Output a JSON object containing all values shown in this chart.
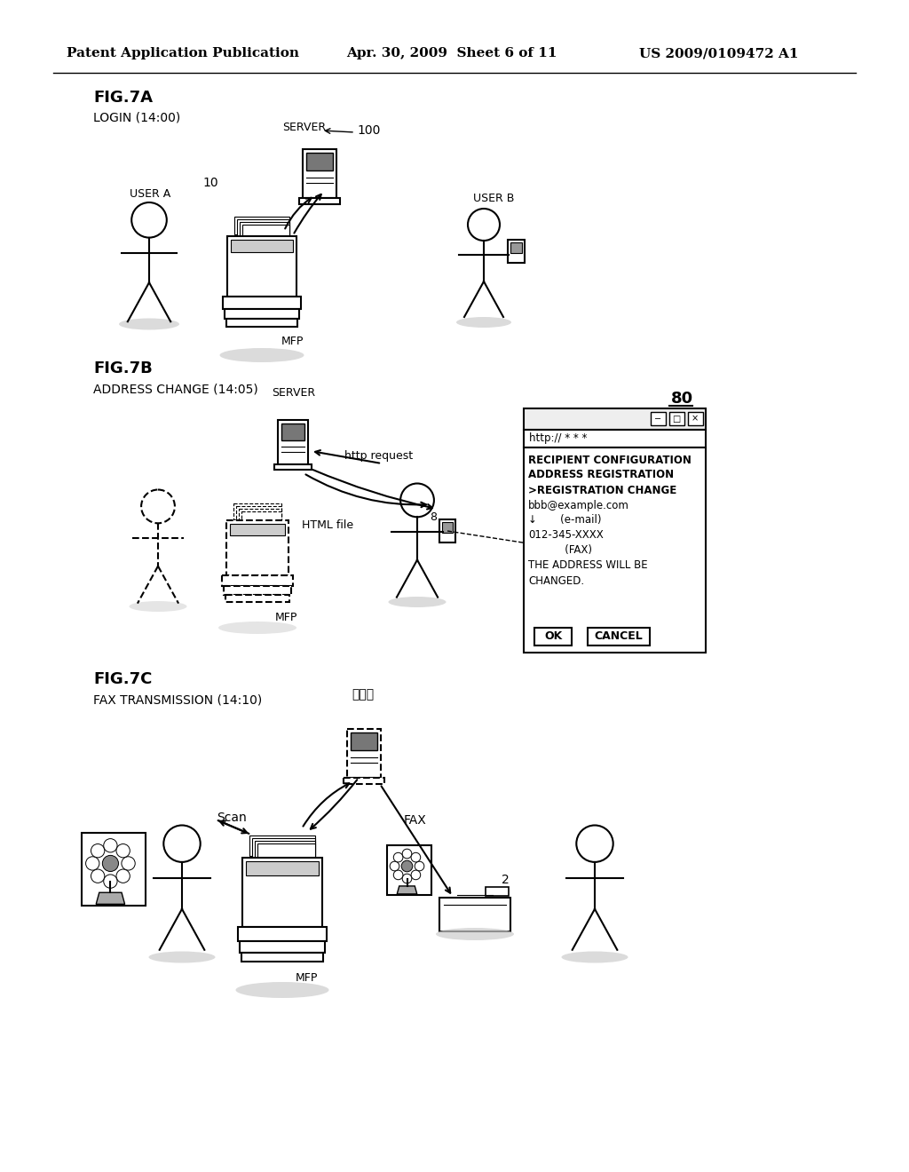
{
  "bg_color": "#ffffff",
  "header_text": "Patent Application Publication",
  "header_date": "Apr. 30, 2009  Sheet 6 of 11",
  "header_patent": "US 2009/0109472 A1",
  "fig7a_label": "FIG.7A",
  "fig7a_sub": "LOGIN (14:00)",
  "fig7b_label": "FIG.7B",
  "fig7b_sub": "ADDRESS CHANGE (14:05)",
  "fig7c_label": "FIG.7C",
  "fig7c_sub": "FAX TRANSMISSION (14:10)",
  "server_label": "SERVER",
  "server_num": "100",
  "mfp_label": "MFP",
  "user_a_label": "USER A",
  "user_b_label": "USER B",
  "num_10": "10",
  "num_8": "8",
  "num_2": "2",
  "num_80": "80",
  "server_label2": "SERVER",
  "html_label": "HTML file",
  "http_label": "http request",
  "mfp_label2": "MFP",
  "scan_label": "Scan",
  "fax_label": "FAX",
  "mfp_label3": "MFP",
  "server_jp": "サーバ",
  "browser_url": "http:// * * *",
  "browser_line1": "RECIPIENT CONFIGURATION",
  "browser_line2": "ADDRESS REGISTRATION",
  "browser_line3": ">REGISTRATION CHANGE",
  "browser_line4": "bbb@example.com",
  "browser_line5": "↓       (e-mail)",
  "browser_line6": "012-345-XXXX",
  "browser_line7": "           (FAX)",
  "browser_line8": "THE ADDRESS WILL BE",
  "browser_line9": "CHANGED.",
  "ok_label": "OK",
  "cancel_label": "CANCEL"
}
